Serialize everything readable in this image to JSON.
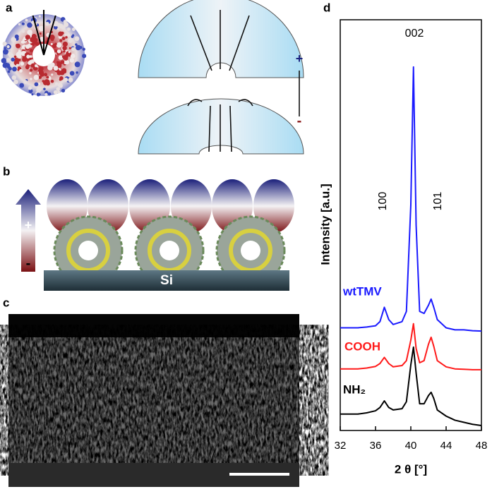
{
  "panels": {
    "a": {
      "label": "a",
      "plus": "+",
      "minus": "-"
    },
    "b": {
      "label": "b",
      "substrate": "Si",
      "plus": "+",
      "minus": "-"
    },
    "c": {
      "label": "c"
    }
  },
  "chart_data": {
    "type": "line",
    "label": "d",
    "xlabel": "2 θ [°]",
    "ylabel": "Intensity [a.u.]",
    "annotations": [
      "002",
      "100",
      "101"
    ],
    "x": [
      32,
      33,
      34,
      35,
      36,
      36.5,
      37,
      37.5,
      38,
      39,
      39.5,
      40,
      40.3,
      40.6,
      41,
      41.5,
      42,
      42.3,
      42.6,
      43,
      44,
      45,
      46,
      47,
      48
    ],
    "series": [
      {
        "name": "wtTMV",
        "color": "#1a1aff",
        "values": [
          25,
          25,
          25,
          25.2,
          25.5,
          26.5,
          30,
          27,
          25.8,
          26.5,
          29,
          55,
          88.5,
          50,
          29,
          28.5,
          30.5,
          32,
          30,
          27,
          25,
          24.5,
          24.5,
          24.3,
          24.2
        ]
      },
      {
        "name": "COOH",
        "color": "#ff1a1a",
        "values": [
          15,
          15,
          15,
          15.2,
          15.6,
          16.3,
          17.8,
          16.3,
          15.5,
          15.8,
          17,
          22,
          26,
          20,
          16.5,
          17,
          21,
          22.7,
          20.5,
          17,
          15.5,
          15,
          14.9,
          14.8,
          14.8
        ]
      },
      {
        "name": "NH₂",
        "color": "#000000",
        "values": [
          4,
          4,
          4,
          4.3,
          4.8,
          5.6,
          7.2,
          5.6,
          5,
          5.3,
          7,
          16,
          20.3,
          14,
          6.5,
          6.5,
          8.5,
          9.3,
          7.8,
          5,
          3.5,
          2.5,
          2,
          1.5,
          1.2
        ]
      }
    ],
    "xlim": [
      32,
      48
    ],
    "xticks": [
      32,
      36,
      40,
      44,
      48
    ],
    "ylim": [
      0,
      100
    ]
  }
}
